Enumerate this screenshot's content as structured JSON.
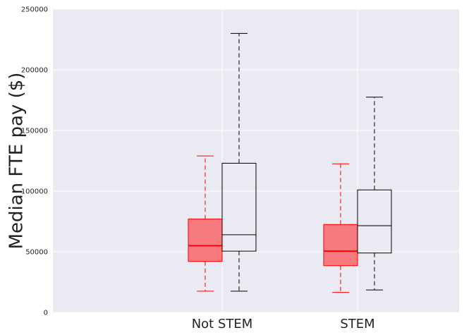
{
  "chart_data": {
    "type": "boxplot",
    "title": "",
    "xlabel": "",
    "ylabel": "Median FTE pay ($)",
    "categories": [
      "Not STEM",
      "STEM"
    ],
    "ylim": [
      0,
      250000
    ],
    "yticks": [
      0,
      50000,
      100000,
      150000,
      200000,
      250000
    ],
    "ytick_labels": [
      "0",
      "50000",
      "100000",
      "150000",
      "200000",
      "250000"
    ],
    "grid": true,
    "colors": {
      "background": "#EAEAF2",
      "grid": "#FFFFFF",
      "red_fill": "#F77B7E",
      "red_line": "#FF0000",
      "black": "#000000"
    },
    "series": [
      {
        "color": "red",
        "boxes": [
          {
            "whislo": 17500,
            "q1": 42000,
            "med": 55000,
            "q3": 77000,
            "whishi": 129000
          },
          {
            "whislo": 16500,
            "q1": 38500,
            "med": 50500,
            "q3": 72500,
            "whishi": 122500
          }
        ]
      },
      {
        "color": "black",
        "boxes": [
          {
            "whislo": 17500,
            "q1": 50500,
            "med": 64000,
            "q3": 123000,
            "whishi": 230000
          },
          {
            "whislo": 18500,
            "q1": 49000,
            "med": 71500,
            "q3": 101000,
            "whishi": 177500
          }
        ]
      }
    ]
  }
}
